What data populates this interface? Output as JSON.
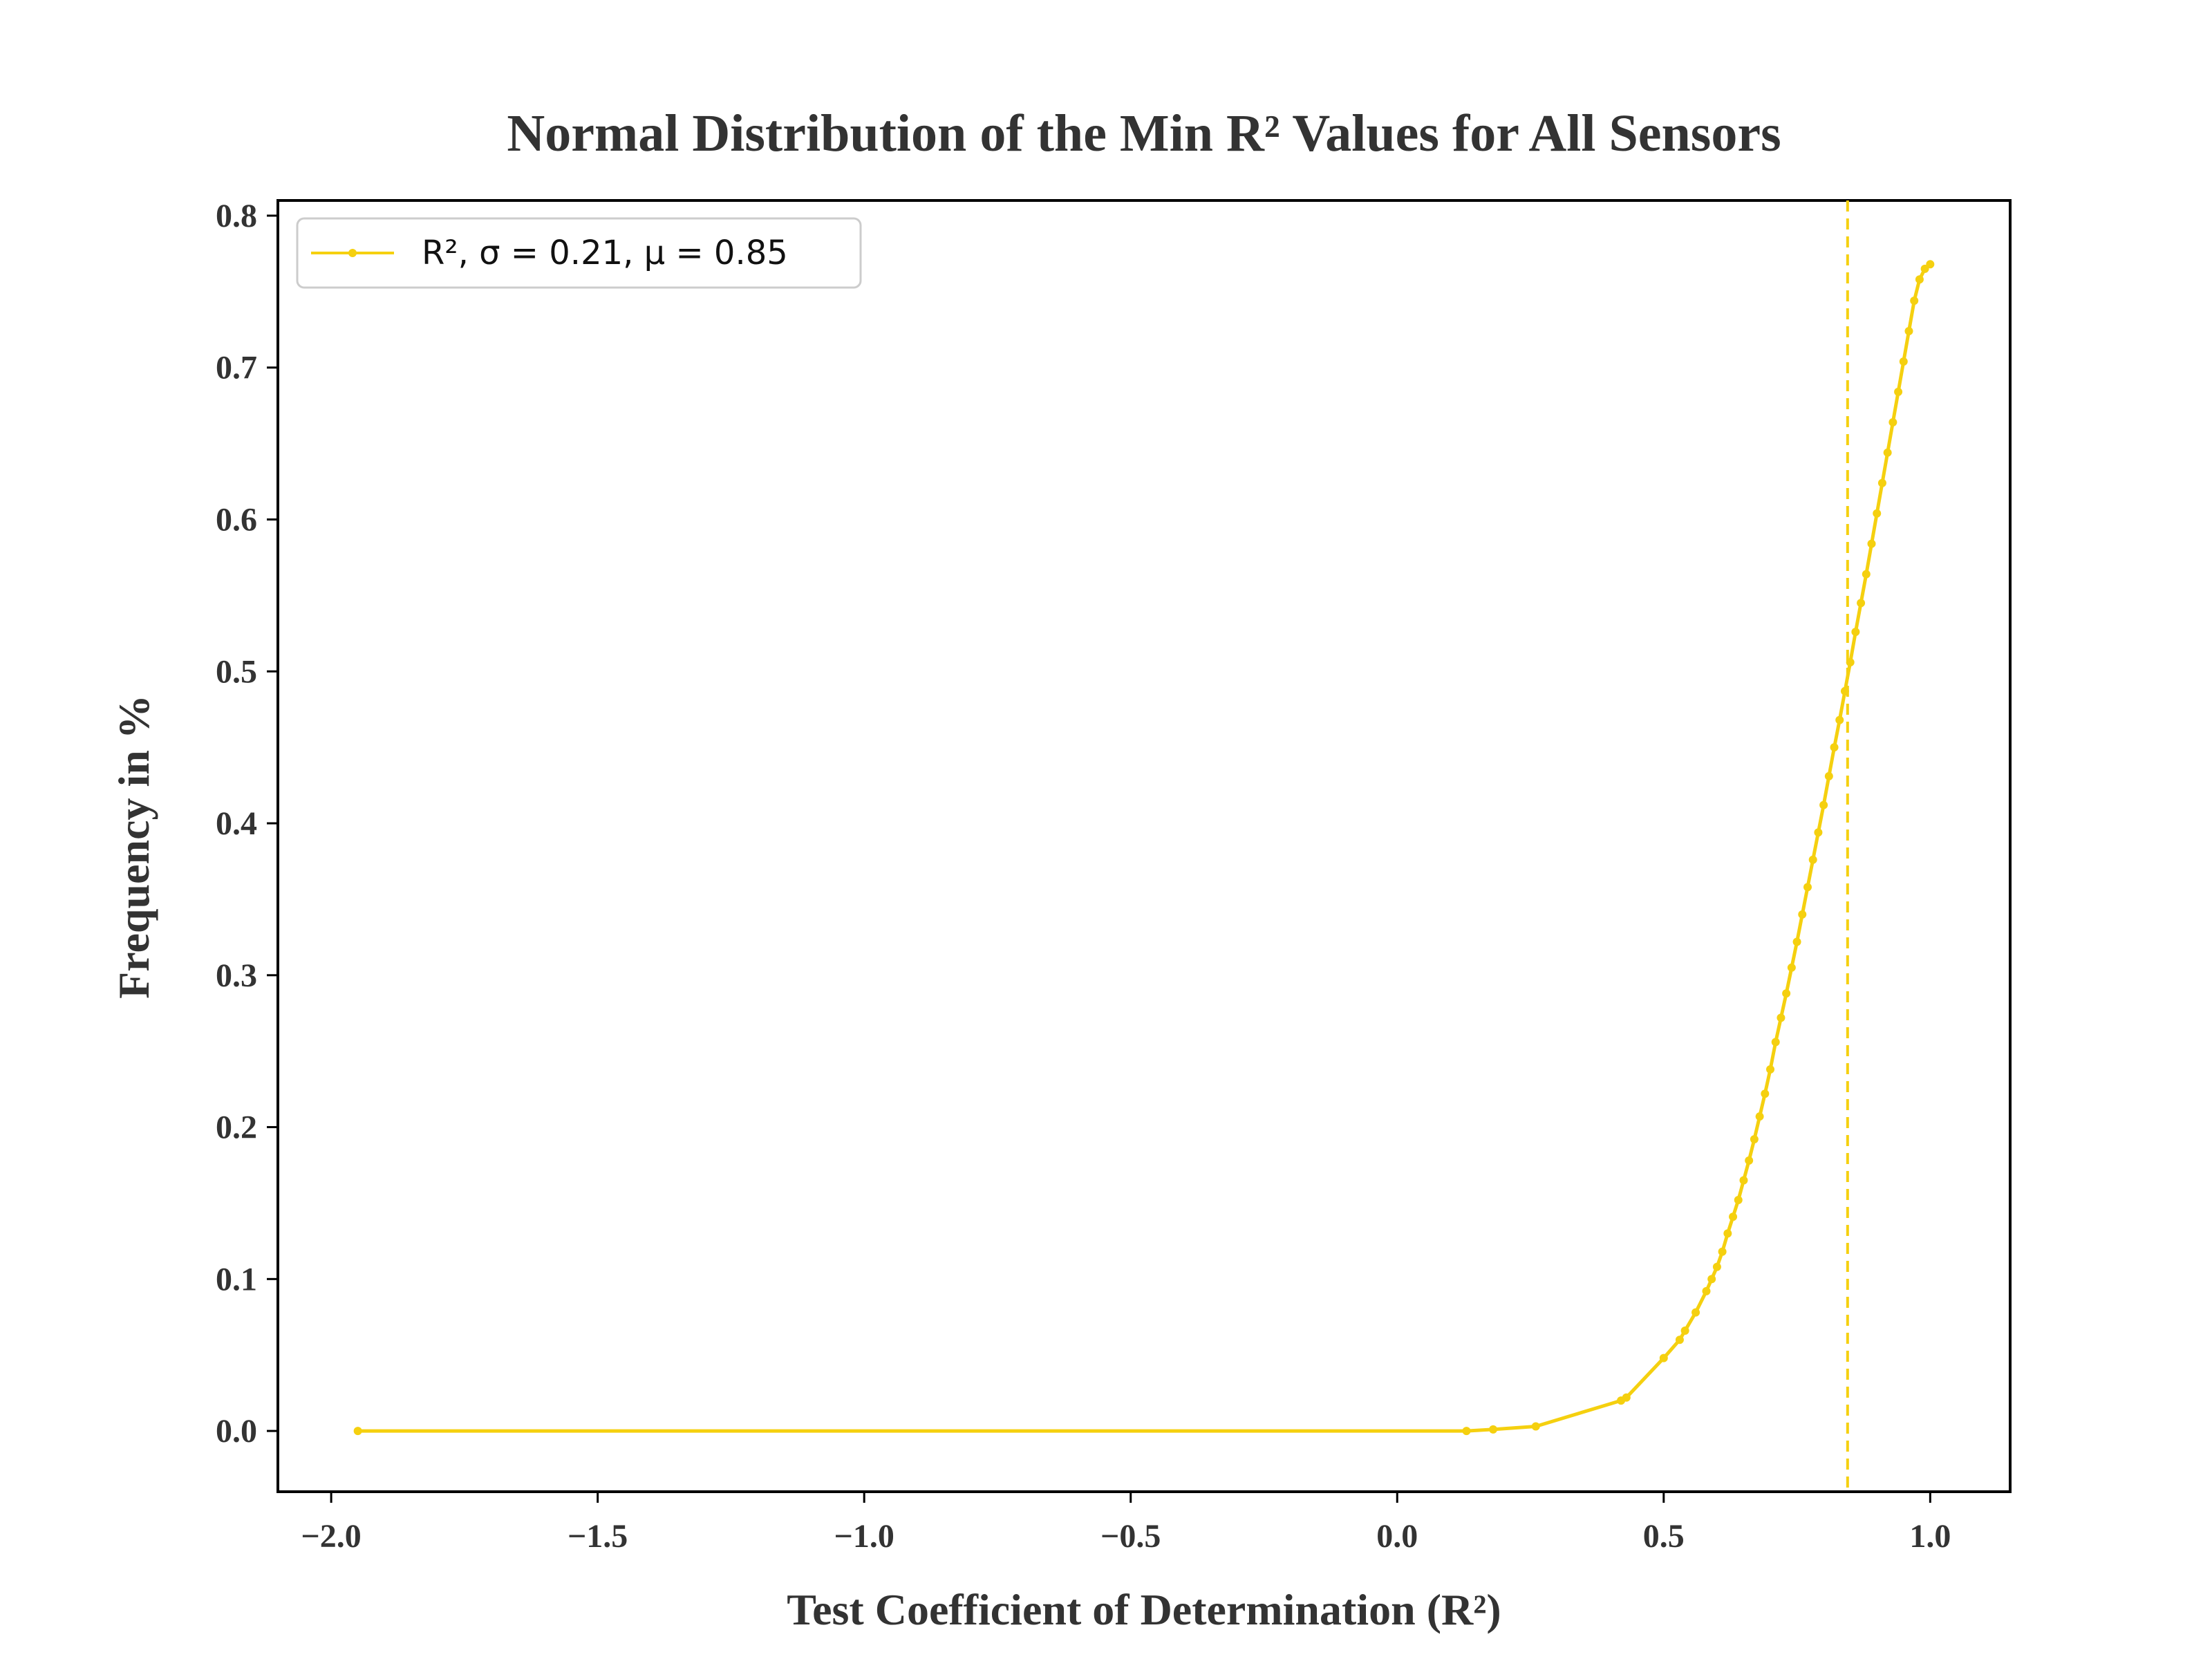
{
  "chart_data": {
    "type": "line",
    "title": "Normal Distribution of the Min R² Values for All Sensors",
    "xlabel": "Test Coefficient of Determination (R²)",
    "ylabel": "Frequency in %",
    "xlim": [
      -2.1,
      1.15
    ],
    "ylim": [
      -0.04,
      0.81
    ],
    "xticks": [
      -2.0,
      -1.5,
      -1.0,
      -0.5,
      0.0,
      0.5,
      1.0
    ],
    "xtick_labels": [
      "−2.0",
      "−1.5",
      "−1.0",
      "−0.5",
      "0.0",
      "0.5",
      "1.0"
    ],
    "yticks": [
      0.0,
      0.1,
      0.2,
      0.3,
      0.4,
      0.5,
      0.6,
      0.7,
      0.8
    ],
    "ytick_labels": [
      "0.0",
      "0.1",
      "0.2",
      "0.3",
      "0.4",
      "0.5",
      "0.6",
      "0.7",
      "0.8"
    ],
    "grid": false,
    "legend_position": "top-left",
    "series": [
      {
        "name": "R², σ = 0.21, μ = 0.85",
        "color": "#f5d00f",
        "marker": "dot",
        "x": [
          -1.95,
          0.13,
          0.18,
          0.26,
          0.42,
          0.43,
          0.5,
          0.53,
          0.54,
          0.56,
          0.58,
          0.59,
          0.6,
          0.61,
          0.62,
          0.63,
          0.64,
          0.65,
          0.66,
          0.67,
          0.68,
          0.69,
          0.7,
          0.71,
          0.72,
          0.73,
          0.74,
          0.75,
          0.76,
          0.77,
          0.78,
          0.79,
          0.8,
          0.81,
          0.82,
          0.83,
          0.84,
          0.85,
          0.86,
          0.87,
          0.88,
          0.89,
          0.9,
          0.91,
          0.92,
          0.93,
          0.94,
          0.95,
          0.96,
          0.97,
          0.98,
          0.99,
          1.0
        ],
        "y": [
          0.0,
          0.0,
          0.001,
          0.003,
          0.02,
          0.022,
          0.048,
          0.06,
          0.066,
          0.078,
          0.092,
          0.1,
          0.108,
          0.118,
          0.13,
          0.141,
          0.152,
          0.165,
          0.178,
          0.192,
          0.207,
          0.222,
          0.238,
          0.256,
          0.272,
          0.288,
          0.305,
          0.322,
          0.34,
          0.358,
          0.376,
          0.394,
          0.412,
          0.431,
          0.45,
          0.468,
          0.487,
          0.506,
          0.526,
          0.545,
          0.564,
          0.584,
          0.604,
          0.624,
          0.644,
          0.664,
          0.684,
          0.704,
          0.724,
          0.744,
          0.758,
          0.765,
          0.768
        ]
      }
    ],
    "vline": {
      "x": 0.845,
      "style": "dashed",
      "color": "#f5d00f"
    }
  }
}
